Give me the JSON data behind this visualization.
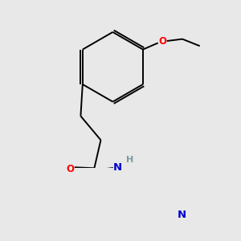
{
  "bg_color": "#e8e8e8",
  "bond_color": "#000000",
  "atom_colors": {
    "O": "#ff0000",
    "N": "#0000cc",
    "S": "#ccaa00",
    "H": "#7a9a9a",
    "C": "#000000"
  },
  "font_size": 8.5,
  "line_width": 1.4,
  "figsize": [
    3.0,
    3.0
  ],
  "dpi": 100
}
